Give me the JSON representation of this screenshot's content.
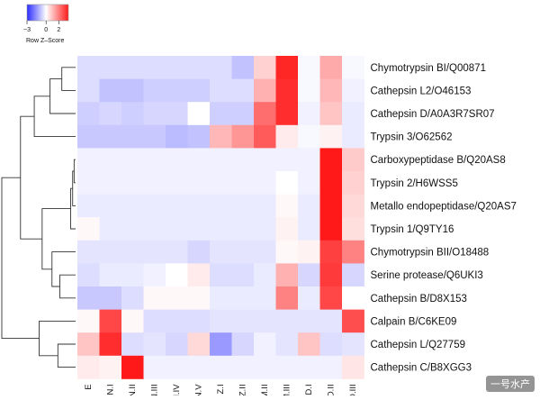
{
  "chart_data": {
    "type": "heatmap",
    "title": "",
    "xlabel": "",
    "ylabel": "",
    "color_key": {
      "title": "Row Z–Score",
      "ticks": [
        -3,
        0,
        2
      ],
      "range": [
        -3,
        3.5
      ],
      "low_color": "#3333ff",
      "mid_color": "#ffffff",
      "high_color": "#ff1a1a"
    },
    "columns": [
      "E",
      "N.I",
      "N.II",
      "N.III",
      "N.IV",
      "N.V",
      "Z.I",
      "Z.II",
      "M.II",
      "M.III",
      "D.I",
      "D.II",
      "D.III"
    ],
    "rows": [
      "Chymotrypsin BI/Q00871",
      "Cathepsin L2/O46153",
      "Cathepsin D/A0A3R7SR07",
      "Trypsin 3/O62562",
      "Carboxypeptidase B/Q20AS8",
      "Trypsin 2/H6WSS5",
      "Metallo endopeptidase/Q20AS7",
      "Trypsin 1/Q9TY16",
      "Chymotrypsin BII/O18488",
      "Serine protease/Q6UKI3",
      "Cathepsin B/D8X153",
      "Calpain B/C6KE09",
      "Cathepsin L/Q27759",
      "Cathepsin C/B8XGG3"
    ],
    "values": [
      [
        -0.5,
        -0.5,
        -0.5,
        -0.5,
        -0.5,
        -0.5,
        -0.5,
        -0.9,
        0.7,
        3.3,
        -0.1,
        1.3,
        -0.1
      ],
      [
        -0.5,
        -0.9,
        -0.9,
        -0.7,
        -0.7,
        -0.7,
        -0.5,
        -0.5,
        1.2,
        3.2,
        -0.1,
        1.1,
        -0.2
      ],
      [
        -0.7,
        -0.6,
        -0.7,
        -0.6,
        -0.6,
        0.0,
        -0.7,
        -0.7,
        2.2,
        3.2,
        -0.2,
        0.9,
        -0.3
      ],
      [
        -0.8,
        -0.8,
        -0.8,
        -0.8,
        -1.0,
        -0.9,
        1.1,
        1.6,
        2.5,
        0.3,
        -0.1,
        0.2,
        -0.3
      ],
      [
        -0.2,
        -0.2,
        -0.2,
        -0.2,
        -0.2,
        -0.2,
        -0.2,
        -0.2,
        -0.2,
        -0.2,
        -0.2,
        3.5,
        0.8
      ],
      [
        -0.2,
        -0.2,
        -0.2,
        -0.2,
        -0.2,
        -0.2,
        -0.2,
        -0.2,
        -0.2,
        0.0,
        -0.2,
        3.5,
        0.7
      ],
      [
        -0.3,
        -0.3,
        -0.3,
        -0.3,
        -0.3,
        -0.3,
        -0.3,
        -0.3,
        -0.3,
        0.1,
        -0.3,
        3.5,
        0.6
      ],
      [
        0.1,
        -0.3,
        -0.3,
        -0.3,
        -0.3,
        -0.3,
        -0.3,
        -0.3,
        -0.3,
        0.2,
        -0.3,
        3.5,
        0.5
      ],
      [
        -0.4,
        -0.4,
        -0.4,
        -0.4,
        -0.4,
        -0.6,
        -0.4,
        -0.4,
        -0.4,
        0.1,
        0.2,
        2.9,
        1.9
      ],
      [
        -0.5,
        -0.3,
        -0.3,
        -0.2,
        0.0,
        0.3,
        -0.5,
        -0.5,
        -0.3,
        1.2,
        -0.6,
        3.0,
        -0.6
      ],
      [
        -0.8,
        -0.8,
        -0.5,
        0.1,
        0.1,
        0.1,
        -0.3,
        -0.3,
        -0.3,
        1.9,
        -0.3,
        2.8,
        0.0
      ],
      [
        0.1,
        2.8,
        0.1,
        -0.5,
        -0.5,
        -0.5,
        -0.4,
        -0.4,
        -0.4,
        -0.4,
        -0.4,
        -0.4,
        2.7
      ],
      [
        0.9,
        3.2,
        -0.5,
        -0.4,
        -0.6,
        0.6,
        -1.5,
        -0.6,
        -0.2,
        -0.4,
        0.9,
        -0.5,
        -0.4
      ],
      [
        0.3,
        0.2,
        3.5,
        -0.2,
        -0.2,
        -0.2,
        -0.2,
        -0.2,
        -0.2,
        -0.2,
        -0.2,
        -0.2,
        0.4
      ]
    ],
    "row_dendrogram": {
      "merges": [
        [
          4,
          5,
          0.15
        ],
        [
          6,
          14,
          0.3
        ],
        [
          7,
          15,
          0.5
        ],
        [
          9,
          10,
          1.6
        ],
        [
          8,
          17,
          2.4
        ],
        [
          18,
          16,
          3.4
        ],
        [
          0,
          1,
          1.4
        ],
        [
          20,
          2,
          2.6
        ],
        [
          21,
          3,
          4.2
        ],
        [
          12,
          13,
          1.8
        ],
        [
          11,
          23,
          3.7
        ],
        [
          22,
          19,
          5.6
        ],
        [
          25,
          24,
          7.5
        ]
      ],
      "max_height": 7.5
    },
    "grid": false,
    "legend": "top-left"
  },
  "watermark": "一号水产"
}
